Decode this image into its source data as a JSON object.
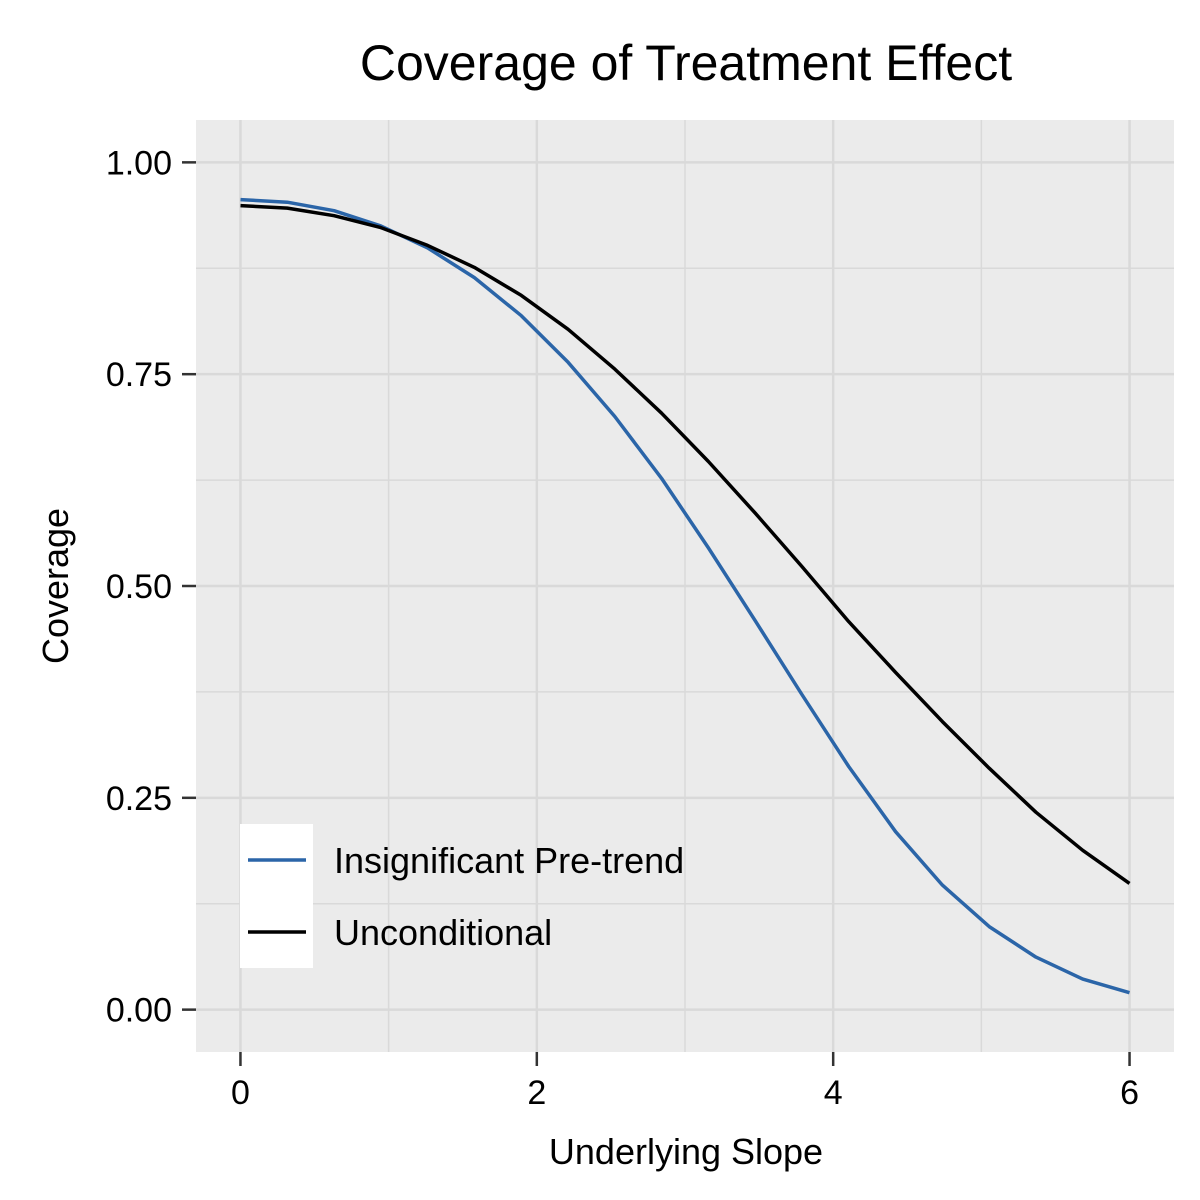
{
  "chart_data": {
    "type": "line",
    "title": "Coverage of Treatment Effect",
    "xlabel": "Underlying Slope",
    "ylabel": "Coverage",
    "xlim": [
      -0.3,
      6.3
    ],
    "ylim": [
      -0.05,
      1.05
    ],
    "x_ticks": [
      0,
      2,
      4,
      6
    ],
    "x_tick_labels": [
      "0",
      "2",
      "4",
      "6"
    ],
    "y_ticks": [
      0,
      0.25,
      0.5,
      0.75,
      1.0
    ],
    "y_tick_labels": [
      "0.00",
      "0.25",
      "0.50",
      "0.75",
      "1.00"
    ],
    "x_minor_grid": [
      1,
      3,
      5
    ],
    "y_minor_grid": [
      0.125,
      0.375,
      0.625,
      0.875
    ],
    "grid": true,
    "legend_position": "bottom-left",
    "x": [
      0,
      0.316,
      0.632,
      0.947,
      1.263,
      1.579,
      1.895,
      2.211,
      2.526,
      2.842,
      3.158,
      3.474,
      3.789,
      4.105,
      4.421,
      4.737,
      5.053,
      5.368,
      5.684,
      6.0
    ],
    "series": [
      {
        "name": "Insignificant Pre-trend",
        "color": "#2b65a8",
        "values": [
          0.956,
          0.953,
          0.943,
          0.925,
          0.899,
          0.864,
          0.819,
          0.764,
          0.7,
          0.627,
          0.545,
          0.459,
          0.372,
          0.287,
          0.21,
          0.147,
          0.098,
          0.062,
          0.036,
          0.02
        ]
      },
      {
        "name": "Unconditional",
        "color": "#000000",
        "values": [
          0.949,
          0.946,
          0.937,
          0.923,
          0.902,
          0.876,
          0.843,
          0.803,
          0.756,
          0.704,
          0.647,
          0.586,
          0.523,
          0.458,
          0.398,
          0.34,
          0.285,
          0.233,
          0.188,
          0.149
        ]
      }
    ]
  }
}
